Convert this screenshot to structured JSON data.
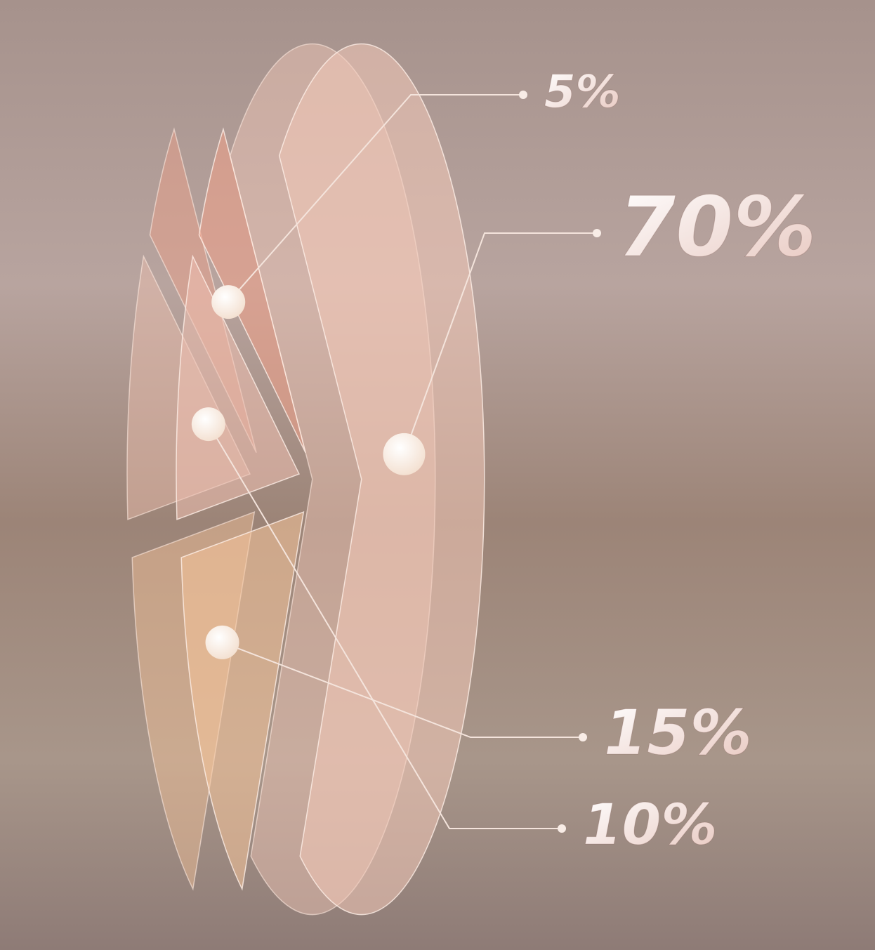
{
  "chart_data": {
    "type": "pie",
    "values": [
      5,
      70,
      15,
      10
    ],
    "value_labels": [
      "5%",
      "70%",
      "15%",
      "10%"
    ],
    "colors": [
      "#f0a088",
      "#f2c8b8",
      "#f6c49a",
      "#efc0b0"
    ]
  }
}
